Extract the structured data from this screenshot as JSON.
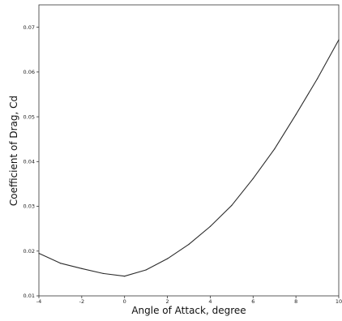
{
  "chart_data": {
    "type": "line",
    "title": "",
    "xlabel": "Angle of Attack, degree",
    "ylabel": "Coefficient of Drag, Cd",
    "xlim": [
      -4,
      10
    ],
    "ylim": [
      0.01,
      0.075
    ],
    "xticks": [
      "-4",
      "-2",
      "0",
      "2",
      "4",
      "6",
      "8",
      "10"
    ],
    "yticks": [
      "0.01",
      "0.02",
      "0.03",
      "0.04",
      "0.05",
      "0.06",
      "0.07"
    ],
    "grid": false,
    "series": [
      {
        "color": "#2b2b2b",
        "x": [
          -4,
          -3,
          -2,
          -1,
          0,
          1,
          2,
          3,
          4,
          5,
          6,
          7,
          8,
          9,
          10
        ],
        "y": [
          0.0195,
          0.0173,
          0.0161,
          0.015,
          0.0144,
          0.0158,
          0.0183,
          0.0215,
          0.0255,
          0.0302,
          0.0362,
          0.0428,
          0.0505,
          0.0585,
          0.0672
        ]
      }
    ]
  }
}
